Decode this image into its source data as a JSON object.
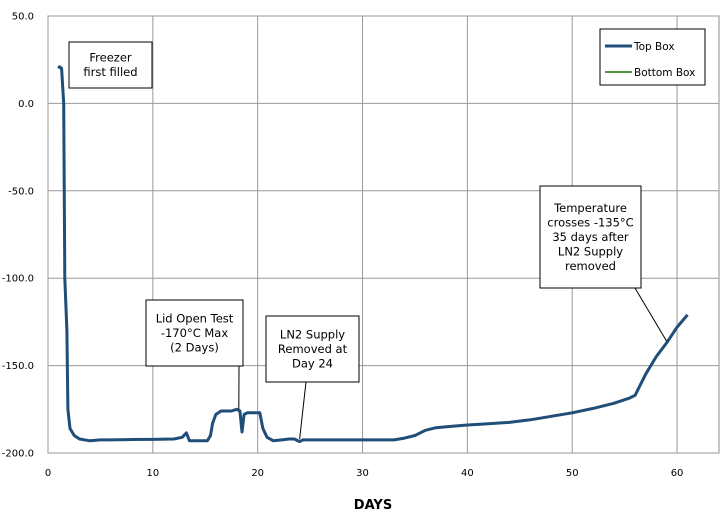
{
  "chart_data": {
    "type": "line",
    "title": "",
    "xlabel": "DAYS",
    "ylabel": "",
    "xlim": [
      0,
      64
    ],
    "ylim": [
      -200,
      50
    ],
    "xticks": [
      "0",
      "10",
      "20",
      "30",
      "40",
      "50",
      "60"
    ],
    "yticks": [
      "50.0",
      "0.0",
      "-50.0",
      "-100.0",
      "-150.0",
      "-200.0"
    ],
    "grid": true,
    "legend_position": "top-right",
    "series": [
      {
        "name": "Top Box",
        "color": "#1f4e79",
        "points": [
          [
            1.0,
            20
          ],
          [
            1.1,
            21
          ],
          [
            1.3,
            20
          ],
          [
            1.5,
            0
          ],
          [
            1.6,
            -100
          ],
          [
            1.8,
            -130
          ],
          [
            1.9,
            -175
          ],
          [
            2.1,
            -186
          ],
          [
            2.5,
            -190
          ],
          [
            3.0,
            -192
          ],
          [
            4.0,
            -193
          ],
          [
            5.0,
            -192.5
          ],
          [
            6.0,
            -192.5
          ],
          [
            8.0,
            -192.3
          ],
          [
            10.0,
            -192.2
          ],
          [
            12.0,
            -192
          ],
          [
            12.8,
            -191
          ],
          [
            13.2,
            -188.5
          ],
          [
            13.5,
            -193
          ],
          [
            14.5,
            -193
          ],
          [
            15.2,
            -193
          ],
          [
            15.5,
            -190
          ],
          [
            15.7,
            -183
          ],
          [
            16.0,
            -178
          ],
          [
            16.5,
            -176
          ],
          [
            17.5,
            -176
          ],
          [
            18.0,
            -175
          ],
          [
            18.3,
            -176
          ],
          [
            18.5,
            -188
          ],
          [
            18.7,
            -178
          ],
          [
            19.0,
            -177
          ],
          [
            19.5,
            -177
          ],
          [
            20.2,
            -177
          ],
          [
            20.5,
            -186
          ],
          [
            20.9,
            -191
          ],
          [
            21.5,
            -193
          ],
          [
            22.3,
            -192.5
          ],
          [
            23.0,
            -192
          ],
          [
            23.5,
            -192
          ],
          [
            24.0,
            -193.5
          ],
          [
            24.3,
            -192.5
          ],
          [
            26.0,
            -192.5
          ],
          [
            30.0,
            -192.5
          ],
          [
            33.0,
            -192.5
          ],
          [
            34.0,
            -191.5
          ],
          [
            35.0,
            -190
          ],
          [
            36.0,
            -187
          ],
          [
            37.0,
            -185.5
          ],
          [
            38.0,
            -185
          ],
          [
            40.0,
            -184
          ],
          [
            42.0,
            -183.3
          ],
          [
            44.0,
            -182.5
          ],
          [
            46.0,
            -181
          ],
          [
            48.0,
            -179
          ],
          [
            50.0,
            -177
          ],
          [
            52.0,
            -174.5
          ],
          [
            54.0,
            -171.5
          ],
          [
            55.5,
            -168.5
          ],
          [
            56.0,
            -167
          ],
          [
            57.0,
            -155
          ],
          [
            58.0,
            -145
          ],
          [
            59.0,
            -137
          ],
          [
            60.0,
            -128
          ],
          [
            61.0,
            -121
          ]
        ]
      },
      {
        "name": "Bottom Box",
        "color": "#4e9a3a",
        "points": [
          [
            1.0,
            20
          ],
          [
            1.1,
            21
          ],
          [
            1.3,
            20
          ],
          [
            1.5,
            0
          ],
          [
            1.6,
            -100
          ],
          [
            1.8,
            -130
          ],
          [
            1.9,
            -175
          ],
          [
            2.1,
            -186
          ],
          [
            2.5,
            -190
          ],
          [
            3.0,
            -192
          ],
          [
            4.0,
            -193
          ],
          [
            5.0,
            -192.5
          ],
          [
            6.0,
            -192.5
          ],
          [
            8.0,
            -192.3
          ],
          [
            10.0,
            -192.2
          ],
          [
            12.0,
            -192
          ],
          [
            12.8,
            -191
          ],
          [
            13.2,
            -188.5
          ],
          [
            13.5,
            -193
          ],
          [
            14.5,
            -193
          ],
          [
            15.2,
            -193
          ],
          [
            15.5,
            -190
          ],
          [
            15.7,
            -183
          ],
          [
            16.0,
            -178
          ],
          [
            16.5,
            -176
          ],
          [
            17.5,
            -176
          ],
          [
            18.0,
            -175
          ],
          [
            18.3,
            -176
          ],
          [
            18.5,
            -188
          ],
          [
            18.7,
            -178
          ],
          [
            19.0,
            -177
          ],
          [
            19.5,
            -177
          ],
          [
            20.2,
            -177
          ],
          [
            20.5,
            -186
          ],
          [
            20.9,
            -191
          ],
          [
            21.5,
            -193
          ],
          [
            22.3,
            -192.5
          ],
          [
            23.0,
            -192
          ],
          [
            23.5,
            -192
          ],
          [
            24.0,
            -193.5
          ],
          [
            24.3,
            -192.5
          ],
          [
            26.0,
            -192.5
          ],
          [
            30.0,
            -192.5
          ],
          [
            33.0,
            -192.5
          ],
          [
            34.0,
            -191.5
          ],
          [
            35.0,
            -190
          ],
          [
            36.0,
            -187
          ],
          [
            37.0,
            -185.5
          ],
          [
            38.0,
            -185
          ],
          [
            40.0,
            -184
          ],
          [
            42.0,
            -183.3
          ],
          [
            44.0,
            -182.5
          ],
          [
            46.0,
            -181
          ],
          [
            48.0,
            -179
          ],
          [
            50.0,
            -177
          ],
          [
            52.0,
            -174.5
          ],
          [
            54.0,
            -171.5
          ],
          [
            55.5,
            -168.5
          ],
          [
            56.0,
            -167
          ],
          [
            57.0,
            -155
          ],
          [
            58.0,
            -145
          ],
          [
            59.0,
            -137
          ],
          [
            60.0,
            -128
          ],
          [
            61.0,
            -121
          ]
        ]
      }
    ],
    "annotations": [
      {
        "lines": [
          "Freezer",
          "first filled"
        ],
        "point_to": null
      },
      {
        "lines": [
          "Lid Open Test",
          "-170°C Max",
          "(2 Days)"
        ],
        "point_to": [
          18.2,
          -175
        ]
      },
      {
        "lines": [
          "LN2 Supply",
          "Removed at",
          "Day 24"
        ],
        "point_to": [
          24.0,
          -192
        ]
      },
      {
        "lines": [
          "Temperature",
          "crosses -135°C",
          "35 days after",
          "LN2 Supply",
          "removed"
        ],
        "point_to": [
          59.0,
          -136
        ]
      }
    ]
  }
}
